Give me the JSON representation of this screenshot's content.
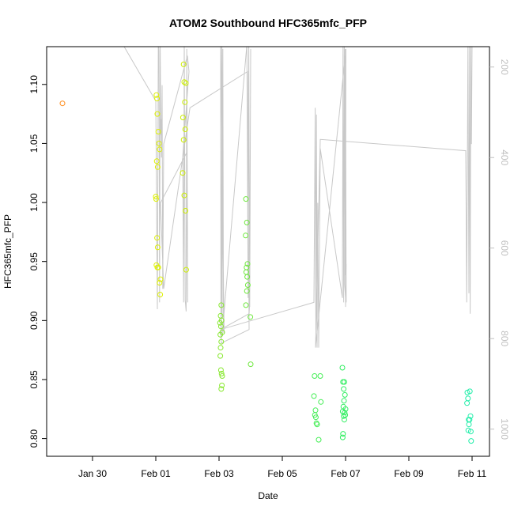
{
  "chart_data": {
    "type": "scatter",
    "title": "ATOM2 Southbound HFC365mfc_PFP",
    "xlabel": "Date",
    "ylabel": "HFC365mfc_PFP",
    "x_ticks": [
      "Jan 30",
      "Feb 01",
      "Feb 03",
      "Feb 05",
      "Feb 07",
      "Feb 09",
      "Feb 11"
    ],
    "xlim_days_from_jan30": [
      -1.45,
      12.55
    ],
    "ylim": [
      0.785,
      1.132
    ],
    "y_ticks": [
      0.8,
      0.85,
      0.9,
      0.95,
      1.0,
      1.05,
      1.1
    ],
    "y_tick_labels": [
      "0.80",
      "0.85",
      "0.90",
      "0.95",
      "1.00",
      "1.05",
      "1.10"
    ],
    "right_axis": {
      "label": "",
      "ticks": [
        200,
        400,
        600,
        800,
        1000
      ],
      "tick_labels": [
        "200",
        "400",
        "600",
        "800",
        "1000"
      ],
      "range_reversed": [
        155,
        1060
      ],
      "color": "#c0c0c0"
    },
    "grid": false,
    "legend": "none",
    "points": [
      {
        "day": -0.95,
        "v": 1.084,
        "c": "#ff8c1a"
      },
      {
        "day": 2.02,
        "v": 1.091,
        "c": "#ddf000"
      },
      {
        "day": 2.04,
        "v": 1.088,
        "c": "#ddf000"
      },
      {
        "day": 2.05,
        "v": 1.075,
        "c": "#ddf000"
      },
      {
        "day": 2.08,
        "v": 1.06,
        "c": "#ddf000"
      },
      {
        "day": 2.1,
        "v": 1.05,
        "c": "#ddf000"
      },
      {
        "day": 2.12,
        "v": 1.045,
        "c": "#ddf000"
      },
      {
        "day": 2.03,
        "v": 1.035,
        "c": "#ddf000"
      },
      {
        "day": 2.06,
        "v": 1.03,
        "c": "#ddf000"
      },
      {
        "day": 2.0,
        "v": 1.005,
        "c": "#ddf000"
      },
      {
        "day": 2.01,
        "v": 1.003,
        "c": "#ddf000"
      },
      {
        "day": 2.04,
        "v": 0.97,
        "c": "#ddf000"
      },
      {
        "day": 2.06,
        "v": 0.962,
        "c": "#ddf000"
      },
      {
        "day": 2.02,
        "v": 0.947,
        "c": "#ddf000"
      },
      {
        "day": 2.05,
        "v": 0.945,
        "c": "#ddf000"
      },
      {
        "day": 2.08,
        "v": 0.945,
        "c": "#ddf000"
      },
      {
        "day": 2.15,
        "v": 0.935,
        "c": "#ddf000"
      },
      {
        "day": 2.12,
        "v": 0.932,
        "c": "#ddf000"
      },
      {
        "day": 2.14,
        "v": 0.922,
        "c": "#ddf000"
      },
      {
        "day": 2.88,
        "v": 1.117,
        "c": "#ccee00"
      },
      {
        "day": 2.9,
        "v": 1.102,
        "c": "#ccee00"
      },
      {
        "day": 2.95,
        "v": 1.101,
        "c": "#ccee00"
      },
      {
        "day": 2.92,
        "v": 1.085,
        "c": "#ccee00"
      },
      {
        "day": 2.86,
        "v": 1.072,
        "c": "#ccee00"
      },
      {
        "day": 2.93,
        "v": 1.062,
        "c": "#ccee00"
      },
      {
        "day": 2.88,
        "v": 1.053,
        "c": "#ccee00"
      },
      {
        "day": 2.85,
        "v": 1.025,
        "c": "#ccee00"
      },
      {
        "day": 2.9,
        "v": 1.006,
        "c": "#ccee00"
      },
      {
        "day": 2.94,
        "v": 0.993,
        "c": "#ccee00"
      },
      {
        "day": 2.96,
        "v": 0.943,
        "c": "#ccee00"
      },
      {
        "day": 4.07,
        "v": 0.913,
        "c": "#88e830"
      },
      {
        "day": 4.05,
        "v": 0.904,
        "c": "#88e830"
      },
      {
        "day": 4.08,
        "v": 0.9,
        "c": "#88e830"
      },
      {
        "day": 4.03,
        "v": 0.898,
        "c": "#88e830"
      },
      {
        "day": 4.06,
        "v": 0.895,
        "c": "#88e830"
      },
      {
        "day": 4.1,
        "v": 0.89,
        "c": "#88e830"
      },
      {
        "day": 4.04,
        "v": 0.888,
        "c": "#88e830"
      },
      {
        "day": 4.07,
        "v": 0.882,
        "c": "#88e830"
      },
      {
        "day": 4.05,
        "v": 0.877,
        "c": "#88e830"
      },
      {
        "day": 4.04,
        "v": 0.87,
        "c": "#88e830"
      },
      {
        "day": 4.06,
        "v": 0.858,
        "c": "#88e830"
      },
      {
        "day": 4.08,
        "v": 0.855,
        "c": "#88e830"
      },
      {
        "day": 4.1,
        "v": 0.853,
        "c": "#88e830"
      },
      {
        "day": 4.09,
        "v": 0.845,
        "c": "#88e830"
      },
      {
        "day": 4.07,
        "v": 0.842,
        "c": "#88e830"
      },
      {
        "day": 4.85,
        "v": 1.003,
        "c": "#70e840"
      },
      {
        "day": 4.88,
        "v": 0.983,
        "c": "#70e840"
      },
      {
        "day": 4.84,
        "v": 0.972,
        "c": "#70e840"
      },
      {
        "day": 4.9,
        "v": 0.948,
        "c": "#70e840"
      },
      {
        "day": 4.87,
        "v": 0.945,
        "c": "#70e840"
      },
      {
        "day": 4.86,
        "v": 0.941,
        "c": "#70e840"
      },
      {
        "day": 4.89,
        "v": 0.937,
        "c": "#70e840"
      },
      {
        "day": 4.91,
        "v": 0.93,
        "c": "#70e840"
      },
      {
        "day": 4.88,
        "v": 0.925,
        "c": "#70e840"
      },
      {
        "day": 4.85,
        "v": 0.913,
        "c": "#70e840"
      },
      {
        "day": 4.99,
        "v": 0.903,
        "c": "#70e840"
      },
      {
        "day": 5.0,
        "v": 0.863,
        "c": "#70e840"
      },
      {
        "day": 7.02,
        "v": 0.853,
        "c": "#44ee55"
      },
      {
        "day": 7.2,
        "v": 0.853,
        "c": "#44ee55"
      },
      {
        "day": 7.0,
        "v": 0.836,
        "c": "#44ee55"
      },
      {
        "day": 7.22,
        "v": 0.831,
        "c": "#44ee55"
      },
      {
        "day": 7.05,
        "v": 0.824,
        "c": "#44ee55"
      },
      {
        "day": 7.03,
        "v": 0.82,
        "c": "#44ee55"
      },
      {
        "day": 7.06,
        "v": 0.818,
        "c": "#44ee55"
      },
      {
        "day": 7.08,
        "v": 0.813,
        "c": "#44ee55"
      },
      {
        "day": 7.1,
        "v": 0.812,
        "c": "#44ee55"
      },
      {
        "day": 7.15,
        "v": 0.799,
        "c": "#44ee55"
      },
      {
        "day": 7.9,
        "v": 0.86,
        "c": "#30ee60"
      },
      {
        "day": 7.92,
        "v": 0.848,
        "c": "#30ee60"
      },
      {
        "day": 7.96,
        "v": 0.848,
        "c": "#30ee60"
      },
      {
        "day": 7.94,
        "v": 0.842,
        "c": "#30ee60"
      },
      {
        "day": 7.98,
        "v": 0.837,
        "c": "#30ee60"
      },
      {
        "day": 7.95,
        "v": 0.832,
        "c": "#30ee60"
      },
      {
        "day": 7.93,
        "v": 0.827,
        "c": "#30ee60"
      },
      {
        "day": 8.0,
        "v": 0.825,
        "c": "#30ee60"
      },
      {
        "day": 7.91,
        "v": 0.823,
        "c": "#30ee60"
      },
      {
        "day": 7.97,
        "v": 0.822,
        "c": "#30ee60"
      },
      {
        "day": 7.99,
        "v": 0.82,
        "c": "#30ee60"
      },
      {
        "day": 7.94,
        "v": 0.819,
        "c": "#30ee60"
      },
      {
        "day": 7.96,
        "v": 0.816,
        "c": "#30ee60"
      },
      {
        "day": 7.92,
        "v": 0.804,
        "c": "#30ee60"
      },
      {
        "day": 7.91,
        "v": 0.801,
        "c": "#30ee60"
      },
      {
        "day": 11.85,
        "v": 0.839,
        "c": "#22eeaa"
      },
      {
        "day": 11.93,
        "v": 0.84,
        "c": "#22eeaa"
      },
      {
        "day": 11.87,
        "v": 0.834,
        "c": "#22eeaa"
      },
      {
        "day": 11.84,
        "v": 0.83,
        "c": "#22eeaa"
      },
      {
        "day": 11.95,
        "v": 0.819,
        "c": "#22eeaa"
      },
      {
        "day": 11.89,
        "v": 0.816,
        "c": "#22eeaa"
      },
      {
        "day": 11.92,
        "v": 0.816,
        "c": "#22eeaa"
      },
      {
        "day": 11.9,
        "v": 0.812,
        "c": "#22eeaa"
      },
      {
        "day": 11.88,
        "v": 0.807,
        "c": "#22eeaa"
      },
      {
        "day": 11.96,
        "v": 0.806,
        "c": "#22eeaa"
      },
      {
        "day": 11.97,
        "v": 0.798,
        "c": "#22eeaa"
      }
    ],
    "altitude_track": [
      [
        -0.05,
        150
      ],
      [
        1.0,
        155
      ],
      [
        2.0,
        275
      ],
      [
        2.05,
        735
      ],
      [
        2.08,
        140
      ],
      [
        2.1,
        165
      ],
      [
        2.12,
        720
      ],
      [
        2.14,
        150
      ],
      [
        2.16,
        350
      ],
      [
        2.17,
        315
      ],
      [
        2.18,
        400
      ],
      [
        2.2,
        240
      ],
      [
        2.22,
        690
      ],
      [
        2.25,
        370
      ],
      [
        3.0,
        175
      ],
      [
        3.05,
        210
      ],
      [
        2.85,
        400
      ],
      [
        2.88,
        720
      ],
      [
        2.9,
        140
      ],
      [
        2.93,
        715
      ],
      [
        2.96,
        740
      ],
      [
        2.98,
        160
      ],
      [
        3.01,
        720
      ],
      [
        2.97,
        390
      ],
      [
        2.15,
        500
      ],
      [
        2.25,
        690
      ],
      [
        3.08,
        290
      ],
      [
        4.9,
        210
      ],
      [
        4.95,
        780
      ],
      [
        4.07,
        810
      ],
      [
        4.09,
        140
      ],
      [
        4.1,
        750
      ],
      [
        4.12,
        160
      ],
      [
        4.14,
        780
      ],
      [
        4.16,
        790
      ],
      [
        4.05,
        140
      ],
      [
        4.06,
        800
      ],
      [
        4.1,
        790
      ],
      [
        4.88,
        150
      ],
      [
        4.92,
        710
      ],
      [
        4.94,
        140
      ],
      [
        4.97,
        730
      ],
      [
        5.0,
        160
      ],
      [
        4.97,
        720
      ],
      [
        4.95,
        745
      ],
      [
        4.05,
        780
      ],
      [
        7.0,
        720
      ],
      [
        7.04,
        290
      ],
      [
        7.06,
        780
      ],
      [
        7.08,
        305
      ],
      [
        7.1,
        820
      ],
      [
        7.12,
        500
      ],
      [
        7.15,
        820
      ],
      [
        7.2,
        380
      ],
      [
        7.9,
        710
      ],
      [
        7.92,
        150
      ],
      [
        7.94,
        720
      ],
      [
        7.96,
        140
      ],
      [
        7.98,
        660
      ],
      [
        8.0,
        210
      ],
      [
        8.02,
        720
      ],
      [
        8.0,
        600
      ],
      [
        7.99,
        160
      ],
      [
        7.97,
        680
      ],
      [
        8.01,
        720
      ],
      [
        8.02,
        635
      ],
      [
        8.0,
        730
      ],
      [
        8.01,
        160
      ],
      [
        7.05,
        820
      ],
      [
        7.2,
        360
      ],
      [
        11.8,
        385
      ],
      [
        11.83,
        720
      ],
      [
        11.87,
        140
      ],
      [
        11.9,
        700
      ],
      [
        11.92,
        150
      ],
      [
        11.94,
        745
      ],
      [
        11.96,
        155
      ],
      [
        11.98,
        370
      ],
      [
        12.0,
        140
      ]
    ]
  }
}
